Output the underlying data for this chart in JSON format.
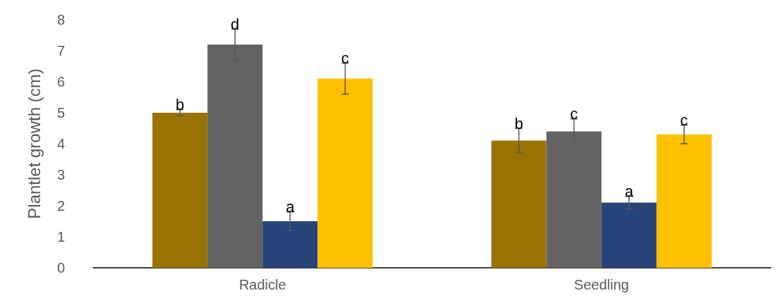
{
  "chart_data": {
    "type": "bar",
    "ylabel": "Plantlet growth (cm)",
    "categories": [
      "Radicle",
      "Seedling"
    ],
    "series": [
      {
        "color": "#997300",
        "values": [
          5.0,
          4.1
        ],
        "errors": [
          0.1,
          0.4
        ]
      },
      {
        "color": "#636363",
        "values": [
          7.2,
          4.4
        ],
        "errors": [
          0.5,
          0.4
        ]
      },
      {
        "color": "#264478",
        "values": [
          1.5,
          2.1
        ],
        "errors": [
          0.3,
          0.2
        ]
      },
      {
        "color": "#ffc000",
        "values": [
          6.1,
          4.3
        ],
        "errors": [
          0.5,
          0.3
        ]
      }
    ],
    "annotations": [
      "b",
      "d",
      "a",
      "c",
      "b",
      "c",
      "a",
      "c"
    ],
    "ylim": [
      0,
      8
    ],
    "yticks": [
      0,
      1,
      2,
      3,
      4,
      5,
      6,
      7,
      8
    ],
    "grid": false
  }
}
